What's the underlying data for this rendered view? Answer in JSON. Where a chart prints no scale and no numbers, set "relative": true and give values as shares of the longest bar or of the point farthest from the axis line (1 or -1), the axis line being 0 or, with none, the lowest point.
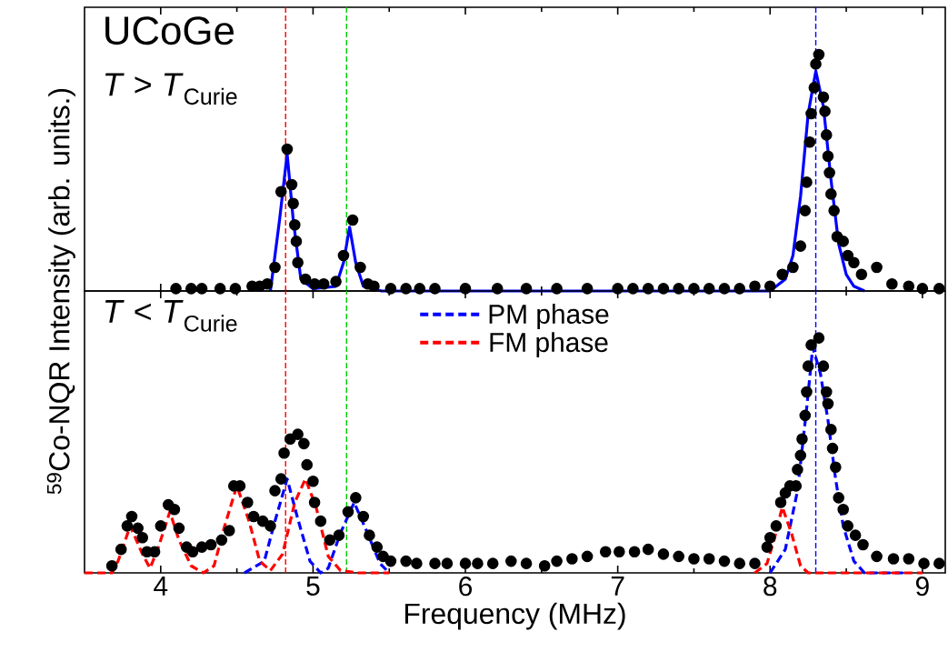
{
  "chart_data": [
    {
      "type": "scatter",
      "relative": true,
      "xlim": [
        3.5,
        9.15
      ],
      "xticks": [
        4,
        5,
        6,
        7,
        8,
        9
      ],
      "tick_labels": false,
      "grid": false,
      "legend": false,
      "ylabel": "$^{59}$Co-NQR Intensity (arb. units.)",
      "annotations": [
        "UCoGe",
        "*T* > *T*$_{Curie}$"
      ],
      "ref_lines": [
        {
          "axis": "x",
          "value": 4.82,
          "color": "#ff0000",
          "line_style": "dashed"
        },
        {
          "axis": "x",
          "value": 5.22,
          "color": "#00cc00",
          "line_style": "dashed"
        },
        {
          "axis": "x",
          "value": 8.3,
          "color": "#0000ff",
          "line_style": "dashed"
        }
      ],
      "series": [
        {
          "marker": "circle",
          "color": "#000000",
          "x": [
            4.1,
            4.2,
            4.27,
            4.39,
            4.49,
            4.6,
            4.65,
            4.7,
            4.75,
            4.79,
            4.83,
            4.86,
            4.87,
            4.88,
            4.89,
            4.9,
            4.95,
            5.01,
            5.07,
            5.15,
            5.2,
            5.26,
            5.31,
            5.36,
            5.4,
            5.51,
            5.61,
            5.7,
            5.8,
            6.0,
            6.21,
            6.4,
            6.6,
            6.8,
            7.0,
            7.1,
            7.2,
            7.3,
            7.4,
            7.5,
            7.6,
            7.7,
            7.8,
            7.9,
            8.0,
            8.08,
            8.15,
            8.2,
            8.23,
            8.24,
            8.26,
            8.27,
            8.29,
            8.3,
            8.32,
            8.35,
            8.36,
            8.37,
            8.38,
            8.39,
            8.4,
            8.42,
            8.44,
            8.48,
            8.51,
            8.55,
            8.6,
            8.7,
            8.8,
            8.91,
            9.0,
            9.11
          ],
          "values": [
            0.01,
            0.01,
            0.01,
            0.01,
            0.01,
            0.02,
            0.02,
            0.03,
            0.1,
            0.42,
            0.6,
            0.45,
            0.37,
            0.28,
            0.21,
            0.12,
            0.05,
            0.03,
            0.03,
            0.04,
            0.15,
            0.3,
            0.1,
            0.03,
            0.02,
            0.01,
            0.01,
            0.01,
            0.01,
            0.01,
            0.01,
            0.01,
            0.01,
            0.01,
            0.01,
            0.01,
            0.01,
            0.01,
            0.01,
            0.01,
            0.01,
            0.01,
            0.01,
            0.02,
            0.02,
            0.07,
            0.1,
            0.19,
            0.34,
            0.46,
            0.63,
            0.75,
            0.86,
            0.96,
            1.0,
            0.82,
            0.76,
            0.66,
            0.57,
            0.5,
            0.41,
            0.34,
            0.23,
            0.21,
            0.15,
            0.12,
            0.07,
            0.1,
            0.03,
            0.02,
            0.01,
            0.01
          ]
        },
        {
          "type": "line",
          "line_style": "solid",
          "color": "#0000ff",
          "x": [
            4.72,
            4.78,
            4.83,
            4.87,
            4.92,
            5.0,
            5.15,
            5.2,
            5.24,
            5.28,
            5.33,
            5.45,
            8.0,
            8.1,
            8.15,
            8.2,
            8.25,
            8.3,
            8.35,
            8.4,
            8.45,
            8.5,
            8.55,
            8.62
          ],
          "values": [
            0.0,
            0.3,
            0.58,
            0.3,
            0.05,
            0.01,
            0.02,
            0.12,
            0.27,
            0.12,
            0.02,
            0.0,
            0.0,
            0.05,
            0.15,
            0.4,
            0.75,
            0.93,
            0.78,
            0.47,
            0.2,
            0.07,
            0.02,
            0.0
          ]
        }
      ]
    },
    {
      "type": "scatter",
      "relative": true,
      "xlim": [
        3.5,
        9.15
      ],
      "xticks": [
        4,
        5,
        6,
        7,
        8,
        9
      ],
      "grid": false,
      "legend": "top",
      "xlabel": "Frequency (MHz)",
      "annotations": [
        "*T* < *T*$_{Curie}$"
      ],
      "ref_lines": [
        {
          "axis": "x",
          "value": 4.82,
          "color": "#ff0000",
          "line_style": "dashed"
        },
        {
          "axis": "x",
          "value": 5.22,
          "color": "#00cc00",
          "line_style": "dashed"
        },
        {
          "axis": "x",
          "value": 8.3,
          "color": "#0000ff",
          "line_style": "dashed"
        }
      ],
      "series": [
        {
          "marker": "circle",
          "color": "#000000",
          "x": [
            3.68,
            3.74,
            3.78,
            3.81,
            3.85,
            3.88,
            3.91,
            3.96,
            4.0,
            4.05,
            4.09,
            4.12,
            4.17,
            4.21,
            4.27,
            4.33,
            4.4,
            4.45,
            4.48,
            4.52,
            4.57,
            4.61,
            4.67,
            4.72,
            4.75,
            4.79,
            4.81,
            4.85,
            4.9,
            4.94,
            4.96,
            5.0,
            5.01,
            5.05,
            5.11,
            5.17,
            5.23,
            5.28,
            5.33,
            5.37,
            5.42,
            5.46,
            5.51,
            5.61,
            5.68,
            5.8,
            5.88,
            6.0,
            6.08,
            6.18,
            6.3,
            6.4,
            6.52,
            6.6,
            6.7,
            6.8,
            6.92,
            7.01,
            7.11,
            7.2,
            7.3,
            7.4,
            7.5,
            7.6,
            7.7,
            7.8,
            7.9,
            7.98,
            8.0,
            8.04,
            8.07,
            8.1,
            8.13,
            8.17,
            8.18,
            8.2,
            8.21,
            8.23,
            8.24,
            8.25,
            8.27,
            8.32,
            8.35,
            8.37,
            8.38,
            8.4,
            8.41,
            8.43,
            8.45,
            8.48,
            8.51,
            8.56,
            8.61,
            8.7,
            8.81,
            8.91,
            9.01,
            9.11
          ],
          "values": [
            0.03,
            0.1,
            0.2,
            0.24,
            0.19,
            0.15,
            0.09,
            0.09,
            0.2,
            0.29,
            0.27,
            0.19,
            0.11,
            0.09,
            0.11,
            0.12,
            0.14,
            0.18,
            0.37,
            0.37,
            0.3,
            0.24,
            0.22,
            0.2,
            0.35,
            0.4,
            0.51,
            0.57,
            0.59,
            0.55,
            0.46,
            0.39,
            0.3,
            0.22,
            0.14,
            0.16,
            0.26,
            0.32,
            0.24,
            0.16,
            0.11,
            0.07,
            0.05,
            0.05,
            0.04,
            0.04,
            0.04,
            0.04,
            0.04,
            0.04,
            0.05,
            0.04,
            0.03,
            0.05,
            0.06,
            0.07,
            0.09,
            0.09,
            0.09,
            0.1,
            0.08,
            0.07,
            0.06,
            0.06,
            0.05,
            0.04,
            0.04,
            0.11,
            0.15,
            0.2,
            0.3,
            0.34,
            0.37,
            0.37,
            0.44,
            0.5,
            0.57,
            0.67,
            0.77,
            0.88,
            0.97,
            1.0,
            0.88,
            0.77,
            0.72,
            0.61,
            0.53,
            0.45,
            0.32,
            0.27,
            0.2,
            0.16,
            0.12,
            0.07,
            0.06,
            0.06,
            0.04,
            0.04
          ]
        },
        {
          "type": "line",
          "name": "PM phase",
          "line_style": "dashed",
          "color": "#0000ff",
          "x": [
            4.55,
            4.68,
            4.75,
            4.83,
            4.9,
            4.98,
            5.05,
            5.1,
            5.18,
            5.27,
            5.35,
            5.44,
            5.5,
            5.55,
            7.95,
            8.0,
            8.1,
            8.18,
            8.24,
            8.28,
            8.33,
            8.38,
            8.43,
            8.48,
            8.55,
            8.62,
            8.9
          ],
          "values": [
            0,
            0.05,
            0.22,
            0.4,
            0.23,
            0.05,
            0.0,
            0.02,
            0.17,
            0.3,
            0.18,
            0.04,
            0,
            null,
            null,
            0,
            0.1,
            0.35,
            0.7,
            0.96,
            0.85,
            0.65,
            0.4,
            0.2,
            0.05,
            0,
            0
          ]
        },
        {
          "type": "line",
          "name": "FM phase",
          "line_style": "dashed",
          "color": "#ff0000",
          "x": [
            3.5,
            3.68,
            3.72,
            3.8,
            3.88,
            3.93,
            3.98,
            4.06,
            4.12,
            4.2,
            4.28,
            4.35,
            4.42,
            4.5,
            4.58,
            4.65,
            4.72,
            4.8,
            4.88,
            4.95,
            5.02,
            5.1,
            5.18,
            5.3,
            5.5,
            5.55,
            7.85,
            7.9,
            7.98,
            8.03,
            8.08,
            8.14,
            8.2,
            8.25,
            9.0
          ],
          "values": [
            0,
            0,
            0.05,
            0.2,
            0.08,
            0.02,
            0.1,
            0.26,
            0.14,
            0.03,
            0,
            0.03,
            0.2,
            0.37,
            0.22,
            0.05,
            0.01,
            0.08,
            0.3,
            0.4,
            0.28,
            0.07,
            0.01,
            0,
            0,
            null,
            null,
            0,
            0.04,
            0.15,
            0.28,
            0.17,
            0.03,
            0,
            0
          ]
        }
      ]
    }
  ]
}
